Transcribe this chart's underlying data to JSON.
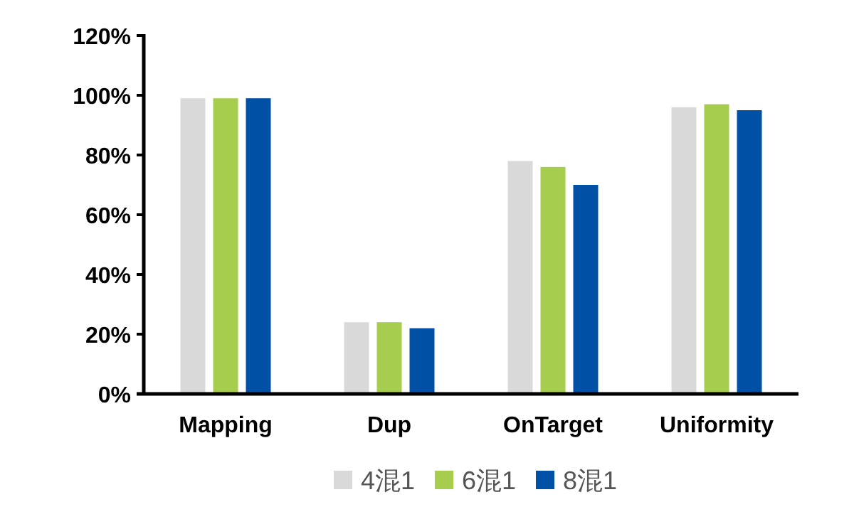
{
  "chart_data": {
    "type": "bar",
    "categories": [
      "Mapping",
      "Dup",
      "OnTarget",
      "Uniformity"
    ],
    "series": [
      {
        "name": "4混1",
        "color": "#d9d9d9",
        "values": [
          99,
          24,
          78,
          96
        ]
      },
      {
        "name": "6混1",
        "color": "#a6cd4e",
        "values": [
          99,
          24,
          76,
          97
        ]
      },
      {
        "name": "8混1",
        "color": "#0050a5",
        "values": [
          99,
          22,
          70,
          95
        ]
      }
    ],
    "ylim": [
      0,
      120
    ],
    "yticks": [
      {
        "value": 0,
        "label": "0%"
      },
      {
        "value": 20,
        "label": "20%"
      },
      {
        "value": 40,
        "label": "40%"
      },
      {
        "value": 60,
        "label": "60%"
      },
      {
        "value": 80,
        "label": "80%"
      },
      {
        "value": 100,
        "label": "100%"
      },
      {
        "value": 120,
        "label": "120%"
      }
    ],
    "grid": false,
    "legend": "bottom"
  }
}
